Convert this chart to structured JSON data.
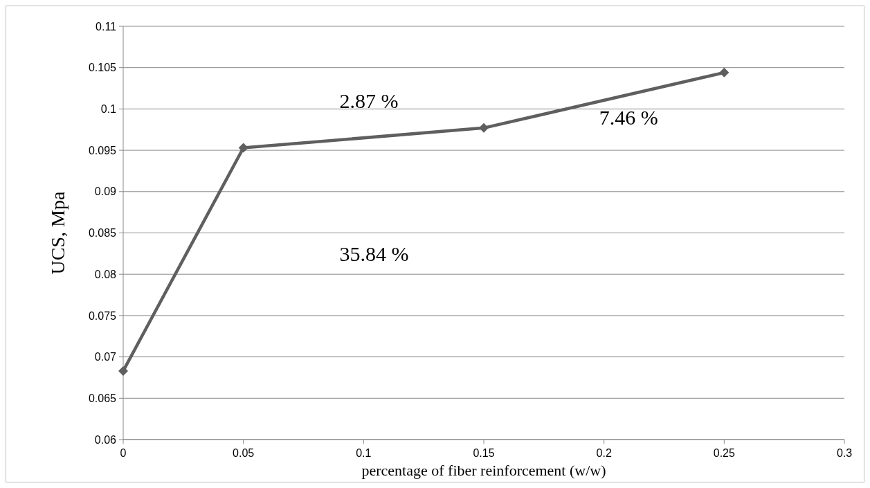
{
  "chart_data": {
    "type": "line",
    "xlabel": "percentage of fiber reinforcement (w/w)",
    "ylabel": "UCS, Mpa",
    "x": [
      0,
      0.05,
      0.15,
      0.25
    ],
    "series": [
      {
        "color": "#5f5f5f",
        "values": [
          0.0683,
          0.0953,
          0.0977,
          0.1044
        ]
      }
    ],
    "xlim": [
      0,
      0.3
    ],
    "xticks": [
      0,
      0.05,
      0.1,
      0.15,
      0.2,
      0.25,
      0.3
    ],
    "ylim": [
      0.06,
      0.11
    ],
    "yticks": [
      0.06,
      0.065,
      0.07,
      0.075,
      0.08,
      0.085,
      0.09,
      0.095,
      0.1,
      0.105,
      0.11
    ],
    "grid": "y",
    "marker": "diamond",
    "line_style": "solid",
    "annotations": [
      "35.84 %",
      "2.87 %",
      "7.46 %"
    ]
  }
}
